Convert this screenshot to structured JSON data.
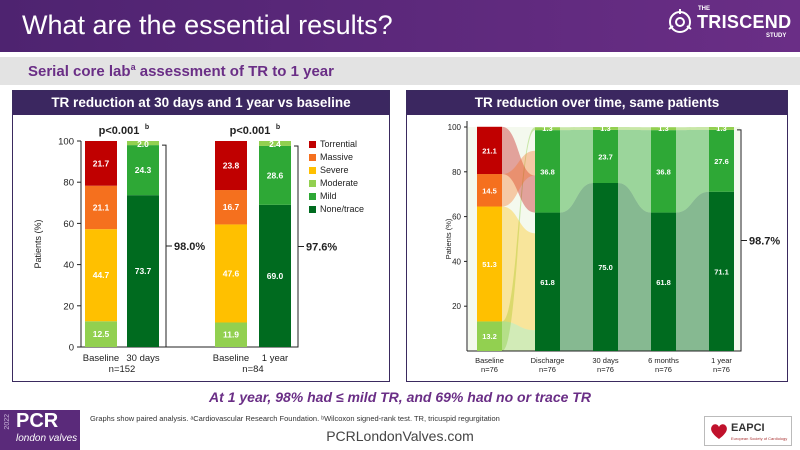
{
  "header": {
    "title": "What are the essential results?"
  },
  "logo": {
    "the": "THE",
    "name": "TRISCEND",
    "study": "STUDY"
  },
  "subtitle": {
    "text": "Serial core lab",
    "sup": "a",
    "rest": " assessment of TR to 1 year"
  },
  "message": "At 1 year, 98% had ≤ mild TR, and 69% had no or trace TR",
  "footer": {
    "logo": "PCR",
    "logo_sub": "london valves",
    "year": "2022",
    "note": "Graphs show paired analysis. ᵃCardiovascular Research Foundation. ᵇWilcoxon signed-rank test. TR, tricuspid regurgitation",
    "url": "PCRLondonValves.com",
    "eapci": "EAPCI",
    "eapci_sub": "European Society of Cardiology"
  },
  "colors": {
    "torrential": "#c00000",
    "massive": "#f5701e",
    "severe": "#ffc000",
    "moderate": "#92d050",
    "mild": "#2ea836",
    "none_trace": "#006b1f",
    "purple": "#6a2e86",
    "navy": "#3b2760"
  },
  "chart_data": [
    {
      "type": "bar",
      "stacked": true,
      "title": "TR reduction at 30 days and 1 year vs baseline",
      "ylabel": "Patients (%)",
      "ylim": [
        0,
        100
      ],
      "yticks": [
        0,
        20,
        40,
        60,
        80,
        100
      ],
      "categories": [
        "Baseline",
        "30 days",
        "Baseline",
        "1 year"
      ],
      "groups": [
        {
          "n_label": "n=152",
          "pvalue": "p<0.001",
          "pvalue_sup": "b",
          "bracket_label": "98.0%"
        },
        {
          "n_label": "n=84",
          "pvalue": "p<0.001",
          "pvalue_sup": "b",
          "bracket_label": "97.6%"
        }
      ],
      "series": [
        {
          "name": "None/trace",
          "values": [
            0,
            73.7,
            0,
            69.0
          ],
          "labels": [
            "",
            "73.7",
            "",
            "69.0"
          ]
        },
        {
          "name": "Mild",
          "values": [
            0,
            24.3,
            0,
            28.6
          ],
          "labels": [
            "",
            "24.3",
            "",
            "28.6"
          ]
        },
        {
          "name": "Moderate",
          "values": [
            12.5,
            2.0,
            11.9,
            2.4
          ],
          "labels": [
            "12.5",
            "2.0",
            "11.9",
            "2.4"
          ]
        },
        {
          "name": "Severe",
          "values": [
            44.7,
            0,
            47.6,
            0
          ],
          "labels": [
            "44.7",
            "",
            "47.6",
            ""
          ]
        },
        {
          "name": "Massive",
          "values": [
            21.1,
            0,
            16.7,
            0
          ],
          "labels": [
            "21.1",
            "",
            "16.7",
            ""
          ]
        },
        {
          "name": "Torrential",
          "values": [
            21.7,
            0,
            23.8,
            0
          ],
          "labels": [
            "21.7",
            "",
            "23.8",
            ""
          ]
        }
      ],
      "legend": [
        "Torrential",
        "Massive",
        "Severe",
        "Moderate",
        "Mild",
        "None/trace"
      ],
      "legend_position": "right"
    },
    {
      "type": "bar",
      "stacked": true,
      "alluvial": true,
      "title": "TR reduction over time, same patients",
      "ylabel": "Patients (%)",
      "ylim": [
        0,
        100
      ],
      "yticks": [
        20,
        40,
        60,
        80,
        100
      ],
      "categories": [
        "Baseline",
        "Discharge",
        "30 days",
        "6 months",
        "1 year"
      ],
      "n_labels": [
        "n=76",
        "n=76",
        "n=76",
        "n=76",
        "n=76"
      ],
      "bracket_label": "98.7%",
      "series": [
        {
          "name": "None/trace",
          "values": [
            0,
            61.8,
            75.0,
            61.8,
            71.1
          ],
          "labels": [
            "",
            "61.8",
            "75.0",
            "61.8",
            "71.1"
          ]
        },
        {
          "name": "Mild",
          "values": [
            0,
            36.8,
            23.7,
            36.8,
            27.6
          ],
          "labels": [
            "",
            "36.8",
            "23.7",
            "36.8",
            "27.6"
          ]
        },
        {
          "name": "Moderate",
          "values": [
            13.2,
            1.3,
            1.3,
            1.3,
            1.3
          ],
          "labels": [
            "13.2",
            "1.3",
            "1.3",
            "1.3",
            "1.3"
          ]
        },
        {
          "name": "Severe",
          "values": [
            51.3,
            0,
            0,
            0,
            0
          ],
          "labels": [
            "51.3",
            "",
            "",
            "",
            ""
          ]
        },
        {
          "name": "Massive",
          "values": [
            14.5,
            0,
            0,
            0,
            0
          ],
          "labels": [
            "14.5",
            "",
            "",
            "",
            ""
          ]
        },
        {
          "name": "Torrential",
          "values": [
            21.1,
            0,
            0,
            0,
            0
          ],
          "labels": [
            "21.1",
            "",
            "",
            "",
            ""
          ]
        }
      ]
    }
  ]
}
